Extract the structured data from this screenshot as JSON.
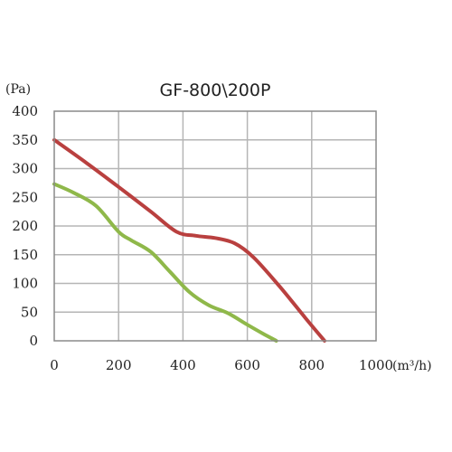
{
  "chart_data": {
    "type": "line",
    "title": "GF-800\\200P",
    "ylabel": "(Pa)",
    "xlabel": "(m³/h)",
    "xlim": [
      0,
      1000
    ],
    "ylim": [
      0,
      400
    ],
    "xticks": [
      0,
      200,
      400,
      600,
      800,
      1000
    ],
    "yticks": [
      0,
      50,
      100,
      150,
      200,
      250,
      300,
      350,
      400
    ],
    "grid": true,
    "series": [
      {
        "color": "#b9403f",
        "x": [
          0,
          100,
          200,
          300,
          380,
          440,
          500,
          560,
          620,
          700,
          780,
          840
        ],
        "y": [
          350,
          310,
          268,
          225,
          190,
          183,
          179,
          170,
          145,
          95,
          40,
          0
        ]
      },
      {
        "color": "#8fb84a",
        "x": [
          0,
          60,
          130,
          200,
          240,
          300,
          360,
          420,
          480,
          540,
          600,
          650,
          690
        ],
        "y": [
          273,
          258,
          235,
          190,
          175,
          155,
          120,
          85,
          62,
          48,
          28,
          12,
          0
        ]
      }
    ]
  }
}
